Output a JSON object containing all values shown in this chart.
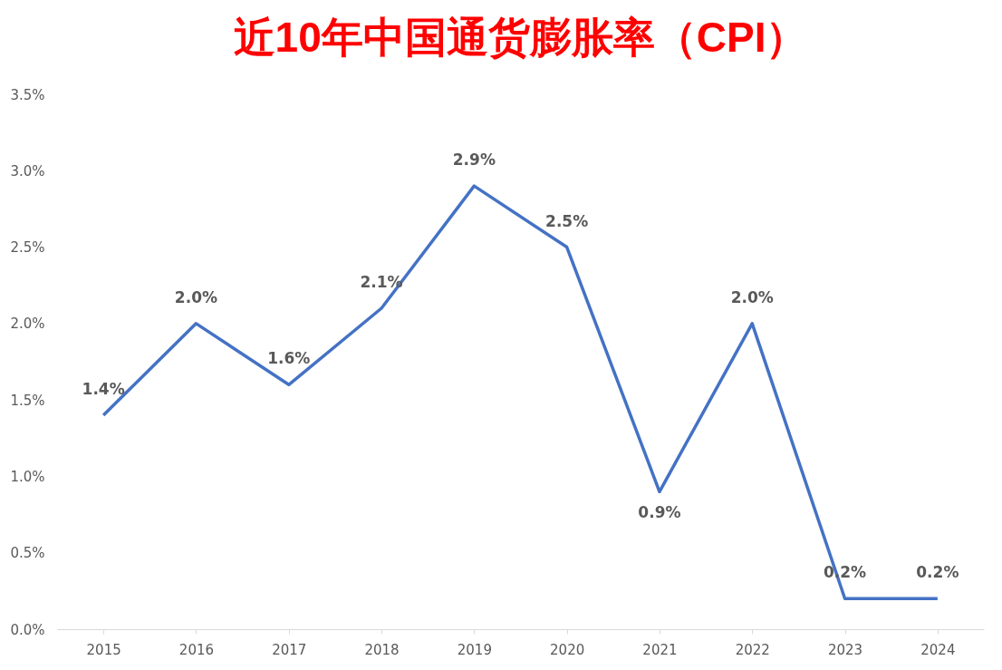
{
  "chart_data": {
    "type": "line",
    "title": "近10年中国通货膨胀率（CPI）",
    "categories": [
      "2015",
      "2016",
      "2017",
      "2018",
      "2019",
      "2020",
      "2021",
      "2022",
      "2023",
      "2024"
    ],
    "series": [
      {
        "color": "#4472c4",
        "values": [
          1.4,
          2.0,
          1.6,
          2.1,
          2.9,
          2.5,
          0.9,
          2.0,
          0.2,
          0.2
        ]
      }
    ],
    "value_labels": [
      "1.4%",
      "2.0%",
      "1.6%",
      "2.1%",
      "2.9%",
      "2.5%",
      "0.9%",
      "2.0%",
      "0.2%",
      "0.2%"
    ],
    "ylim": [
      0,
      3.5
    ],
    "yticks": [
      {
        "value": 0,
        "label": "0.0%"
      },
      {
        "value": 0.5,
        "label": "0.5%"
      },
      {
        "value": 1,
        "label": "1.0%"
      },
      {
        "value": 1.5,
        "label": "1.5%"
      },
      {
        "value": 2,
        "label": "2.0%"
      },
      {
        "value": 2.5,
        "label": "2.5%"
      },
      {
        "value": 3,
        "label": "3.0%"
      },
      {
        "value": 3.5,
        "label": "3.5%"
      }
    ],
    "grid": false,
    "marker": "none",
    "line_style": "solid"
  }
}
